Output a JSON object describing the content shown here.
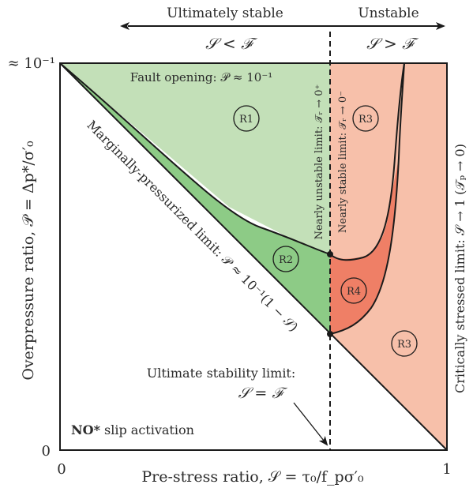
{
  "colors": {
    "light_green": "#c3e0b8",
    "green": "#8dcb86",
    "salmon": "#f7c0aa",
    "red": "#ef7f66",
    "line": "#1a1a1a"
  },
  "header": {
    "left_label": "Ultimately stable",
    "right_label": "Unstable",
    "left_relation": "𝒮 < ℱ",
    "right_relation": "𝒮 > ℱ"
  },
  "axes": {
    "xlabel": "Pre-stress ratio, 𝒮 = τ₀/f_pσ′₀",
    "ylabel": "Overpressure ratio, 𝒫 = Δp*/σ′₀",
    "x_ticks": [
      "0",
      "1"
    ],
    "y_ticks": [
      "0",
      "≈ 10⁻¹"
    ],
    "right_label": "Critically stressed limit: 𝒮 → 1  (𝒯ₚ → 0)"
  },
  "annotations": {
    "fault_opening": "Fault opening: 𝒫 ≈ 10⁻¹",
    "marginal_limit": "Marginally-pressurized limit: 𝒫 ≈ 10⁻¹(1 − 𝒮)",
    "nearly_unstable": "Nearly unstable limit: 𝒯ᵣ → 0⁺",
    "nearly_stable": "Nearly stable limit: 𝒯ᵣ → 0⁻",
    "ultimate_title": "Ultimate stability limit:",
    "ultimate_relation": "𝒮 = ℱ",
    "no_slip_bold": "NO*",
    "no_slip_rest": " slip activation"
  },
  "regions": [
    "R1",
    "R2",
    "R3",
    "R4",
    "R3"
  ]
}
